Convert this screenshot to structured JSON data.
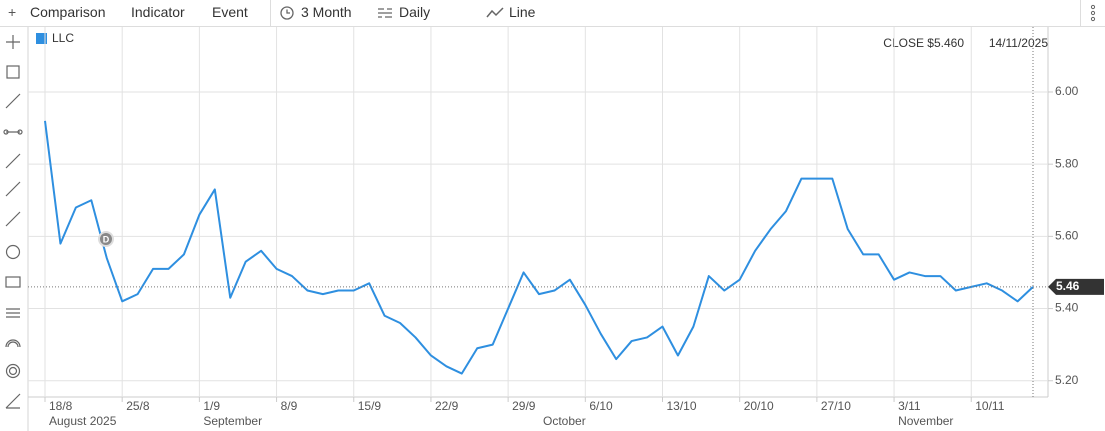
{
  "toolbar": [
    "Comparison",
    "Indicator",
    "Event",
    "3 Month",
    "Daily",
    "Line"
  ],
  "close_label": "CLOSE $5.460",
  "date_label": "14/11/2025",
  "event_marker": "D",
  "chart_data": {
    "type": "line",
    "categories": [
      "18/8",
      null,
      null,
      null,
      null,
      "25/8",
      null,
      null,
      null,
      null,
      "1/9",
      null,
      null,
      null,
      null,
      "8/9",
      null,
      null,
      null,
      null,
      "15/9",
      null,
      null,
      null,
      null,
      "22/9",
      null,
      null,
      null,
      null,
      "29/9",
      null,
      null,
      null,
      null,
      "6/10",
      null,
      null,
      null,
      null,
      "13/10",
      null,
      null,
      null,
      null,
      "20/10",
      null,
      null,
      null,
      null,
      "27/10",
      null,
      null,
      null,
      null,
      "3/11",
      null,
      null,
      null,
      null,
      "10/11",
      null,
      null,
      null,
      null
    ],
    "month_labels": [
      "August 2025",
      null,
      null,
      null,
      null,
      null,
      null,
      null,
      null,
      null,
      "September",
      null,
      null,
      null,
      null,
      null,
      null,
      null,
      null,
      null,
      null,
      null,
      null,
      null,
      null,
      null,
      null,
      null,
      null,
      null,
      null,
      null,
      "October",
      null,
      null,
      null,
      null,
      null,
      null,
      null,
      null,
      null,
      null,
      null,
      null,
      null,
      null,
      null,
      null,
      null,
      null,
      null,
      null,
      null,
      null,
      "November",
      null,
      null,
      null,
      null,
      null,
      null,
      null,
      null,
      null
    ],
    "series": [
      {
        "name": "LLC",
        "color": "#2e8fe0",
        "values": [
          5.92,
          5.58,
          5.68,
          5.7,
          5.54,
          5.42,
          5.44,
          5.51,
          5.51,
          5.55,
          5.66,
          5.73,
          5.43,
          5.53,
          5.56,
          5.51,
          5.49,
          5.45,
          5.44,
          5.45,
          5.45,
          5.47,
          5.38,
          5.36,
          5.32,
          5.27,
          5.24,
          5.22,
          5.29,
          5.3,
          5.4,
          5.5,
          5.44,
          5.45,
          5.48,
          5.41,
          5.33,
          5.26,
          5.31,
          5.32,
          5.35,
          5.27,
          5.35,
          5.49,
          5.45,
          5.48,
          5.56,
          5.62,
          5.67,
          5.76,
          5.76,
          5.76,
          5.62,
          5.55,
          5.55,
          5.48,
          5.5,
          5.49,
          5.49,
          5.45,
          5.46,
          5.47,
          5.45,
          5.42,
          5.46
        ]
      }
    ],
    "last_value_label": "5.46",
    "ylim": [
      5.155,
      6.18
    ],
    "yticks": [
      {
        "value": 5.2,
        "label": "5.20"
      },
      {
        "value": 5.4,
        "label": "5.40"
      },
      {
        "value": 5.6,
        "label": "5.60"
      },
      {
        "value": 5.8,
        "label": "5.80"
      },
      {
        "value": 6.0,
        "label": "6.00"
      }
    ],
    "grid": true
  }
}
